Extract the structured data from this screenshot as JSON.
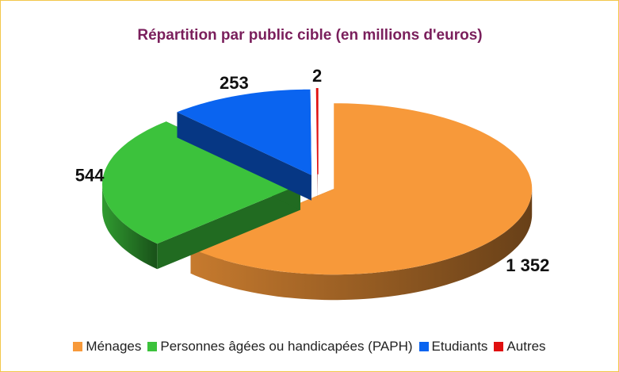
{
  "chart_data": {
    "type": "pie3d",
    "title": "Répartition par public cible (en millions d'euros)",
    "categories": [
      "Ménages",
      "Personnes âgées ou handicapées (PAPH)",
      "Etudiants",
      "Autres"
    ],
    "values": [
      1352,
      544,
      253,
      2
    ],
    "value_labels": [
      "1 352",
      "544",
      "253",
      "2"
    ],
    "colors": [
      "#f7993a",
      "#3cc23c",
      "#0a64f0",
      "#e01010"
    ],
    "legend": "bottom"
  }
}
